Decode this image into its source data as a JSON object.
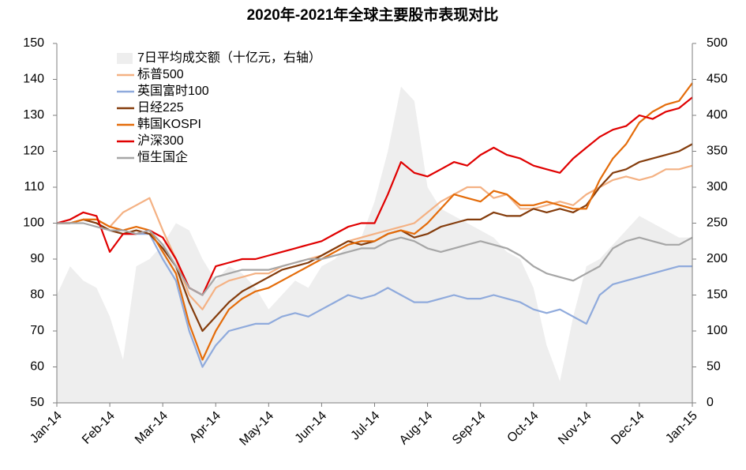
{
  "chart_data": {
    "type": "line",
    "title": "2020年-2021年全球主要股市表现对比",
    "categories": [
      "Jan-14",
      null,
      null,
      null,
      "Feb-14",
      null,
      null,
      null,
      "Mar-14",
      null,
      null,
      null,
      "Apr-14",
      null,
      null,
      null,
      "May-14",
      null,
      null,
      null,
      "Jun-14",
      null,
      null,
      null,
      "Jul-14",
      null,
      null,
      null,
      "Aug-14",
      null,
      null,
      null,
      "Sep-14",
      null,
      null,
      null,
      "Oct-14",
      null,
      null,
      null,
      "Nov-14",
      null,
      null,
      null,
      "Dec-14",
      null,
      null,
      null,
      "Jan-15"
    ],
    "ylim": [
      50,
      150
    ],
    "yticks": [
      50,
      60,
      70,
      80,
      90,
      100,
      110,
      120,
      130,
      140,
      150
    ],
    "y2lim": [
      0,
      500
    ],
    "y2ticks": [
      0,
      50,
      100,
      150,
      200,
      250,
      300,
      350,
      400,
      450,
      500
    ],
    "legend": "upper left",
    "series": [
      {
        "name": "7日平均成交额（十亿元，右轴）",
        "color": "#eeeeee",
        "axis": "y2",
        "values": [
          150,
          190,
          170,
          160,
          120,
          60,
          190,
          200,
          220,
          250,
          240,
          200,
          170,
          190,
          180,
          160,
          130,
          150,
          170,
          160,
          190,
          200,
          220,
          230,
          280,
          350,
          440,
          420,
          300,
          270,
          260,
          250,
          240,
          230,
          210,
          200,
          160,
          80,
          30,
          120,
          190,
          200,
          220,
          240,
          260,
          250,
          240,
          230,
          230
        ]
      },
      {
        "name": "标普500",
        "color": "#f4b183",
        "values": [
          100,
          100,
          101,
          101,
          99,
          103,
          105,
          107,
          98,
          90,
          80,
          76,
          82,
          84,
          85,
          86,
          86,
          88,
          89,
          90,
          91,
          93,
          95,
          96,
          97,
          98,
          99,
          100,
          103,
          106,
          108,
          110,
          110,
          107,
          108,
          104,
          104,
          105,
          106,
          105,
          108,
          110,
          112,
          113,
          112,
          113,
          115,
          115,
          116
        ]
      },
      {
        "name": "英国富时100",
        "color": "#8faadc",
        "values": [
          100,
          100,
          101,
          100,
          98,
          97,
          97,
          97,
          90,
          84,
          70,
          60,
          66,
          70,
          71,
          72,
          72,
          74,
          75,
          74,
          76,
          78,
          80,
          79,
          80,
          82,
          80,
          78,
          78,
          79,
          80,
          79,
          79,
          80,
          79,
          78,
          76,
          75,
          76,
          74,
          72,
          80,
          83,
          84,
          85,
          86,
          87,
          88,
          88
        ]
      },
      {
        "name": "日经225",
        "color": "#843c0c",
        "values": [
          100,
          100,
          101,
          100,
          98,
          97,
          98,
          97,
          93,
          88,
          78,
          70,
          74,
          78,
          81,
          83,
          85,
          87,
          88,
          89,
          91,
          93,
          95,
          94,
          95,
          97,
          98,
          96,
          97,
          99,
          100,
          101,
          101,
          103,
          102,
          102,
          104,
          103,
          104,
          103,
          105,
          110,
          114,
          115,
          117,
          118,
          119,
          120,
          122
        ]
      },
      {
        "name": "韩国KOSPI",
        "color": "#e46c0a",
        "values": [
          100,
          100,
          101,
          101,
          99,
          98,
          99,
          98,
          92,
          86,
          72,
          62,
          70,
          76,
          79,
          81,
          82,
          84,
          86,
          88,
          90,
          92,
          94,
          95,
          95,
          97,
          98,
          97,
          100,
          104,
          108,
          107,
          106,
          109,
          108,
          105,
          105,
          106,
          105,
          104,
          104,
          112,
          118,
          122,
          128,
          131,
          133,
          134,
          139
        ]
      },
      {
        "name": "沪深300",
        "color": "#e00000",
        "values": [
          100,
          101,
          103,
          102,
          92,
          97,
          97,
          98,
          96,
          90,
          82,
          80,
          88,
          89,
          90,
          90,
          91,
          92,
          93,
          94,
          95,
          97,
          99,
          100,
          100,
          108,
          117,
          114,
          113,
          115,
          117,
          116,
          119,
          121,
          119,
          118,
          116,
          115,
          114,
          118,
          121,
          124,
          126,
          127,
          130,
          129,
          131,
          132,
          135
        ]
      },
      {
        "name": "恒生国企",
        "color": "#a6a6a6",
        "values": [
          100,
          100,
          100,
          99,
          98,
          98,
          97,
          98,
          94,
          88,
          82,
          80,
          85,
          86,
          87,
          87,
          87,
          88,
          89,
          90,
          90,
          91,
          92,
          93,
          93,
          95,
          96,
          95,
          93,
          92,
          93,
          94,
          95,
          94,
          93,
          91,
          88,
          86,
          85,
          84,
          86,
          88,
          93,
          95,
          96,
          95,
          94,
          94,
          96
        ]
      }
    ]
  }
}
